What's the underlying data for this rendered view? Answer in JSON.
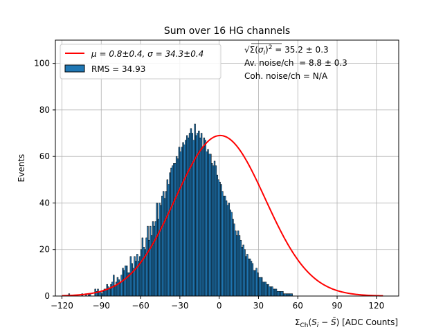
{
  "chart_data": {
    "type": "bar",
    "title": "Sum over 16 HG channels",
    "xlabel": "Σ_Ch(S_i − S̄) [ADC Counts]",
    "ylabel": "Events",
    "xlim": [
      -125,
      137
    ],
    "ylim": [
      0,
      110
    ],
    "xticks": [
      -120,
      -90,
      -60,
      -30,
      0,
      30,
      60,
      90,
      120
    ],
    "yticks": [
      0,
      20,
      40,
      60,
      80,
      100
    ],
    "grid": true,
    "legend_position": "upper-left",
    "histogram": {
      "name": "RMS = 34.93",
      "color": "#1f77b4",
      "edge_color": "#000000",
      "bin_start": -119,
      "bin_width": 1,
      "counts": [
        0,
        0,
        0,
        0,
        1,
        0,
        0,
        0,
        0,
        0,
        0,
        0,
        0,
        0,
        1,
        0,
        0,
        1,
        0,
        1,
        1,
        0,
        0,
        0,
        3,
        2,
        3,
        2,
        2,
        1,
        2,
        3,
        3,
        5,
        4,
        3,
        5,
        6,
        9,
        4,
        6,
        8,
        7,
        6,
        9,
        12,
        11,
        13,
        13,
        10,
        10,
        17,
        14,
        12,
        17,
        15,
        18,
        15,
        17,
        20,
        25,
        21,
        20,
        25,
        30,
        24,
        30,
        26,
        32,
        30,
        32,
        40,
        33,
        40,
        39,
        43,
        45,
        42,
        45,
        50,
        48,
        53,
        55,
        56,
        57,
        57,
        60,
        59,
        64,
        62,
        64,
        66,
        65,
        67,
        69,
        68,
        70,
        72,
        70,
        67,
        74,
        69,
        70,
        71,
        68,
        70,
        64,
        68,
        67,
        62,
        63,
        61,
        61,
        57,
        56,
        58,
        56,
        52,
        50,
        49,
        48,
        45,
        43,
        43,
        41,
        39,
        40,
        37,
        36,
        33,
        31,
        28,
        26,
        28,
        26,
        24,
        21,
        22,
        20,
        17,
        18,
        16,
        16,
        15,
        14,
        11,
        11,
        12,
        10,
        8,
        8,
        8,
        6,
        6,
        6,
        5,
        5,
        4,
        4,
        4,
        3,
        3,
        3,
        2,
        2,
        2,
        2,
        2,
        1,
        1,
        1,
        1,
        1,
        1,
        1,
        0,
        0,
        0,
        0,
        0,
        0,
        0,
        0,
        0,
        0,
        0,
        0,
        0,
        0,
        0,
        0,
        0,
        0,
        0,
        0,
        0,
        0,
        0,
        0,
        0,
        0,
        0,
        0,
        0,
        0,
        0,
        0,
        0,
        0,
        0,
        0,
        0,
        0,
        0,
        0,
        0,
        0,
        0,
        0,
        0,
        0,
        0,
        0,
        0,
        0,
        0,
        0,
        0,
        0,
        0,
        0,
        0,
        0,
        0,
        0,
        0,
        0,
        0,
        0,
        0,
        0,
        0,
        0,
        0,
        0,
        0,
        0,
        0,
        0,
        0,
        0,
        0,
        0,
        0,
        0,
        0,
        0,
        0,
        0,
        0,
        0,
        0,
        0,
        0,
        0,
        0,
        0,
        0
      ]
    },
    "fit": {
      "name": "μ = 0.8±0.4, σ = 34.3±0.4",
      "color": "#ff0000",
      "amplitude": 69,
      "mu": 0.8,
      "sigma": 34.3,
      "x_range": [
        -120,
        125
      ]
    },
    "annotations": [
      "√Σ(σ_i)² = 35.2 ± 0.3",
      "Av. noise/ch  = 8.8 ± 0.3",
      "Coh. noise/ch = N/A"
    ]
  }
}
